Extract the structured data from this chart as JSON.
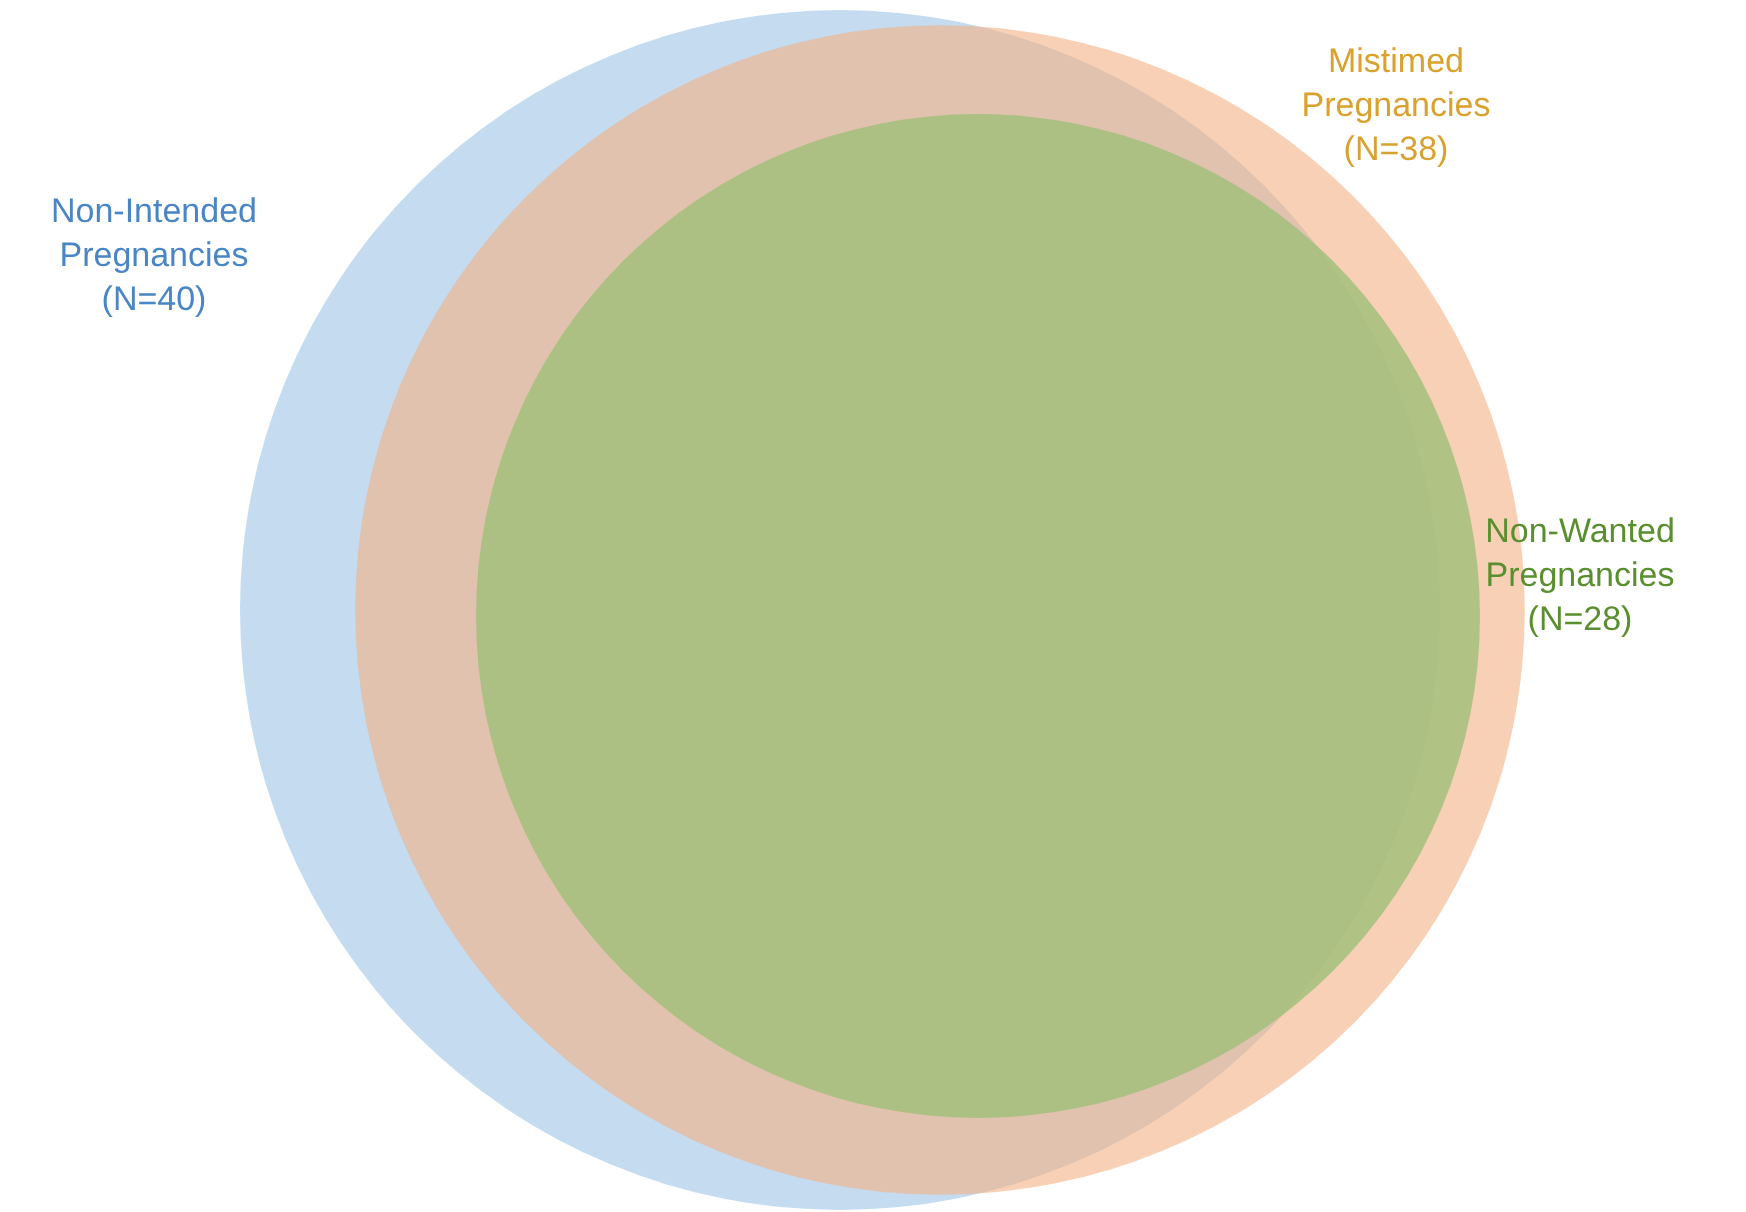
{
  "chart_data": {
    "type": "other",
    "categories": [
      "Non-Intended Pregnancies",
      "Mistimed Pregnancies",
      "Non-Wanted Pregnancies"
    ],
    "values": [
      40,
      38,
      28
    ],
    "value_labels": [
      "(N=40)",
      "(N=38)",
      "(N=28)"
    ],
    "colors": [
      "#9dc3e6",
      "#f4b183",
      "#9fbf78"
    ]
  }
}
